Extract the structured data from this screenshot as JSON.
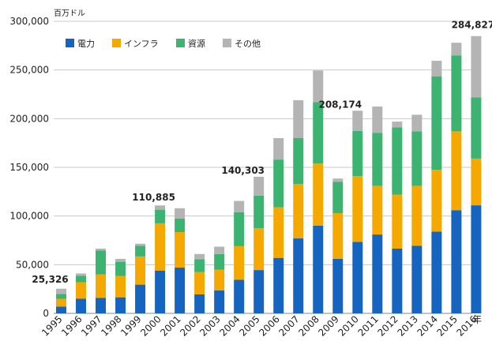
{
  "chart_data": {
    "type": "bar",
    "stacked": true,
    "title": "",
    "ylabel": "百万ドル",
    "xlabel": "年",
    "ylim": [
      0,
      300000
    ],
    "yticks": [
      "0",
      "50,000",
      "100,000",
      "150,000",
      "200,000",
      "250,000",
      "300,000"
    ],
    "yticks_values": [
      0,
      50000,
      100000,
      150000,
      200000,
      250000,
      300000
    ],
    "categories": [
      "1995",
      "1996",
      "1997",
      "1998",
      "1999",
      "2000",
      "2001",
      "2002",
      "2003",
      "2004",
      "2005",
      "2006",
      "2007",
      "2008",
      "2009",
      "2010",
      "2011",
      "2012",
      "2013",
      "2014",
      "2015",
      "2016"
    ],
    "series": [
      {
        "name": "電力",
        "color": "#1565c0",
        "values": [
          7000,
          15000,
          16000,
          16500,
          29500,
          44000,
          47000,
          19500,
          23500,
          34500,
          44500,
          57000,
          77000,
          90000,
          56000,
          73500,
          81000,
          66500,
          69500,
          84000,
          106000,
          111000
        ]
      },
      {
        "name": "インフラ",
        "color": "#f5a800",
        "values": [
          8000,
          17000,
          24000,
          22000,
          29000,
          48500,
          36500,
          23000,
          21500,
          34500,
          43000,
          52000,
          56000,
          64000,
          47000,
          67500,
          50000,
          55500,
          61500,
          63500,
          81000,
          48000
        ]
      },
      {
        "name": "資源",
        "color": "#3cb371",
        "values": [
          5000,
          6500,
          24500,
          14500,
          11000,
          14000,
          14000,
          13000,
          16000,
          35000,
          33500,
          49000,
          47000,
          63000,
          32000,
          46500,
          54500,
          69000,
          56000,
          96000,
          78000,
          63000
        ]
      },
      {
        "name": "その他",
        "color": "#b4b4b4",
        "values": [
          5326,
          2500,
          2000,
          3000,
          2000,
          4385,
          10500,
          5500,
          7500,
          11500,
          19303,
          22000,
          39000,
          32500,
          3500,
          20674,
          27000,
          6000,
          17000,
          16000,
          13000,
          62827
        ]
      }
    ],
    "annotations": [
      {
        "category": "1995",
        "label": "25,326"
      },
      {
        "category": "2000",
        "label": "110,885"
      },
      {
        "category": "2005",
        "label": "140,303"
      },
      {
        "category": "2010",
        "label": "208,174"
      },
      {
        "category": "2016",
        "label": "284,827"
      }
    ],
    "legend": "top-left"
  }
}
